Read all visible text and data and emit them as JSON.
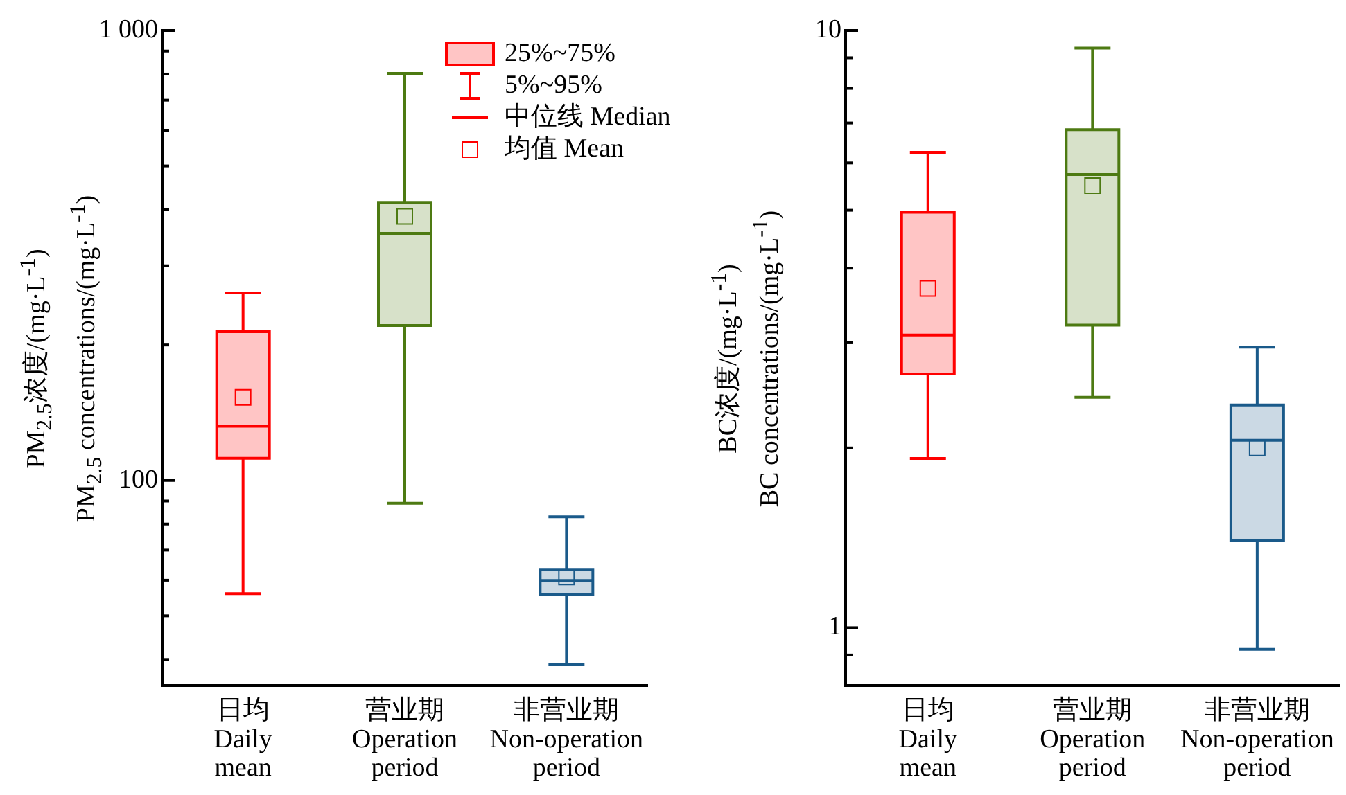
{
  "chart_data": [
    {
      "type": "box",
      "ylabel": "PM$_{2.5}$浓度/(mg·L$^{-1}$)\nPM$_{2.5}$ concentrations/(mg·L$^{-1}$)",
      "categories": [
        "日均\nDaily\nmean",
        "营业期\nOperation\nperiod",
        "非营业期\nNon-operation\nperiod"
      ],
      "colors": [
        "#ff0000",
        "#4d7a12",
        "#1a5a8a"
      ],
      "boxes": [
        {
          "low": 56,
          "q1": 112,
          "median": 132,
          "q3": 214,
          "high": 261,
          "mean": 153
        },
        {
          "low": 89,
          "q1": 221,
          "median": 354,
          "q3": 415,
          "high": 803,
          "mean": 386
        },
        {
          "low": 39,
          "q1": 55.7,
          "median": 59.9,
          "q3": 63.4,
          "high": 83,
          "mean": 61
        }
      ],
      "log": true,
      "ylim": [
        35,
        1000
      ],
      "yticks": [
        {
          "value": 40,
          "label": null
        },
        {
          "value": 50,
          "label": null
        },
        {
          "value": 60,
          "label": null
        },
        {
          "value": 70,
          "label": null
        },
        {
          "value": 80,
          "label": null
        },
        {
          "value": 90,
          "label": null
        },
        100,
        {
          "value": 200,
          "label": null
        },
        {
          "value": 300,
          "label": null
        },
        {
          "value": 400,
          "label": null
        },
        {
          "value": 500,
          "label": null
        },
        {
          "value": 600,
          "label": null
        },
        {
          "value": 700,
          "label": null
        },
        {
          "value": 800,
          "label": null
        },
        {
          "value": 900,
          "label": null
        },
        {
          "value": 1000,
          "label": "1 000"
        }
      ],
      "annotations": [
        "25%~75%",
        "5%~95%",
        "中位线 Median",
        "均值 Mean"
      ]
    },
    {
      "type": "box",
      "ylabel": "BC浓度/(mg·L$^{-1}$)\nBC concentrations/(mg·L$^{-1}$)",
      "categories": [
        "日均\nDaily\nmean",
        "营业期\nOperation\nperiod",
        "非营业期\nNon-operation\nperiod"
      ],
      "colors": [
        "#ff0000",
        "#4d7a12",
        "#1a5a8a"
      ],
      "boxes": [
        {
          "low": 1.92,
          "q1": 2.66,
          "median": 3.09,
          "q3": 4.96,
          "high": 6.25,
          "mean": 3.7
        },
        {
          "low": 2.43,
          "q1": 3.21,
          "median": 5.74,
          "q3": 6.82,
          "high": 9.34,
          "mean": 5.5
        },
        {
          "low": 0.92,
          "q1": 1.4,
          "median": 2.06,
          "q3": 2.36,
          "high": 2.95,
          "mean": 2.0
        }
      ],
      "log": true,
      "ylim": [
        0.8,
        10
      ],
      "yticks": [
        {
          "value": 0.9,
          "label": null
        },
        1,
        {
          "value": 2,
          "label": null
        },
        {
          "value": 3,
          "label": null
        },
        {
          "value": 4,
          "label": null
        },
        {
          "value": 5,
          "label": null
        },
        {
          "value": 6,
          "label": null
        },
        {
          "value": 7,
          "label": null
        },
        {
          "value": 8,
          "label": null
        },
        {
          "value": 9,
          "label": null
        },
        10
      ]
    }
  ]
}
